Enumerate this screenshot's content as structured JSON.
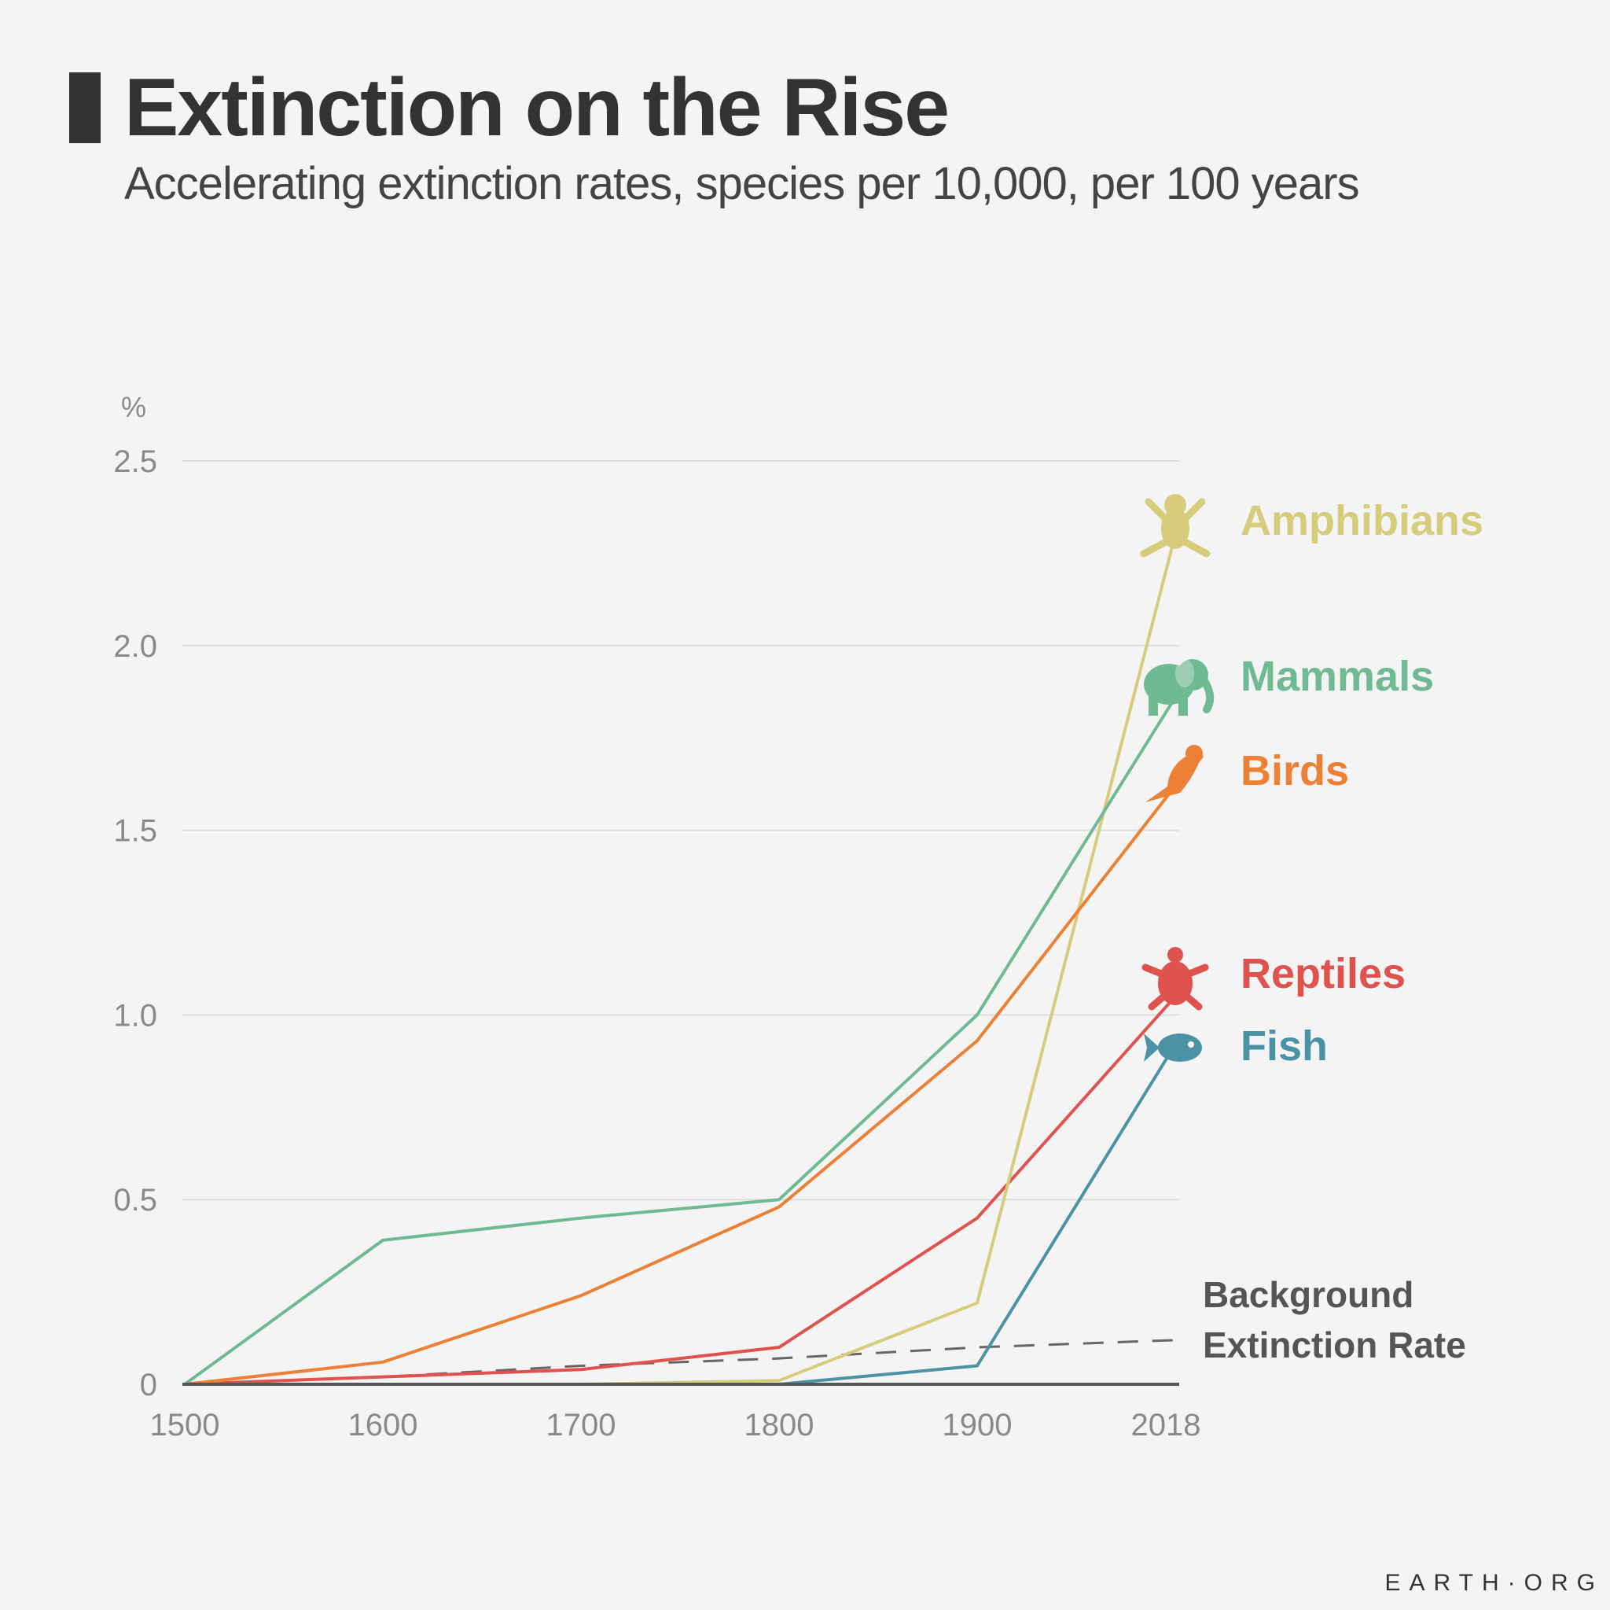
{
  "header": {
    "title": "Extinction on the Rise",
    "subtitle": "Accelerating extinction rates, species per 10,000, per 100 years"
  },
  "footer": {
    "brand": "EARTH·ORG"
  },
  "chart_data": {
    "type": "line",
    "title": "Extinction on the Rise",
    "subtitle": "Accelerating extinction rates, species per 10,000, per 100 years",
    "ylabel": "%",
    "xlabel": "",
    "x": [
      1500,
      1600,
      1700,
      1800,
      1900,
      2018
    ],
    "x_tick_labels": [
      "1500",
      "1600",
      "1700",
      "1800",
      "1900",
      "2018"
    ],
    "y_ticks": [
      0,
      0.5,
      1.0,
      1.5,
      2.0,
      2.5
    ],
    "y_tick_labels": [
      "0",
      "0.5",
      "1.0",
      "1.5",
      "2.0",
      "2.5"
    ],
    "ylim": [
      0,
      2.5
    ],
    "grid": true,
    "series": [
      {
        "name": "Amphibians",
        "color": "#d7cc7b",
        "icon": "frog-icon",
        "values": [
          0,
          0,
          0,
          0.01,
          0.22,
          2.3
        ]
      },
      {
        "name": "Mammals",
        "color": "#6fba93",
        "icon": "elephant-icon",
        "values": [
          0,
          0.39,
          0.45,
          0.5,
          1.0,
          1.86
        ]
      },
      {
        "name": "Birds",
        "color": "#ec8034",
        "icon": "bird-icon",
        "values": [
          0,
          0.06,
          0.24,
          0.48,
          0.93,
          1.62
        ]
      },
      {
        "name": "Reptiles",
        "color": "#e0524e",
        "icon": "turtle-icon",
        "values": [
          0,
          0.02,
          0.04,
          0.1,
          0.45,
          1.05
        ]
      },
      {
        "name": "Fish",
        "color": "#4b93a4",
        "icon": "fish-icon",
        "values": [
          0,
          0,
          0,
          0,
          0.05,
          0.92
        ]
      }
    ],
    "reference_line": {
      "name": "Background Extinction Rate",
      "label_lines": [
        "Background",
        "Extinction Rate"
      ],
      "style": "dashed",
      "color": "#666666",
      "values": [
        0,
        0.02,
        0.05,
        0.07,
        0.1,
        0.12
      ]
    }
  }
}
